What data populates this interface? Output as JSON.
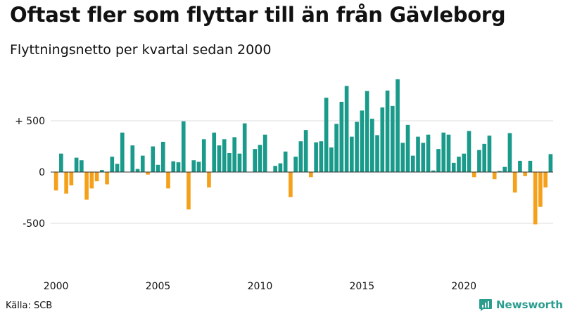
{
  "header": {
    "title": "Oftast fler som flyttar till än från Gävleborg",
    "subtitle": "Flyttningsnetto per kvartal sedan 2000"
  },
  "footer": {
    "source": "Källa: SCB",
    "brand": "Newsworthy"
  },
  "colors": {
    "positive": "#1a9a8a",
    "negative": "#f5a01a",
    "grid": "#dddddd",
    "baseline": "#333333",
    "brand": "#2a9d8f"
  },
  "chart_data": {
    "type": "bar",
    "title": "Oftast fler som flyttar till än från Gävleborg",
    "subtitle": "Flyttningsnetto per kvartal sedan 2000",
    "x_start": "2000 Q1",
    "interval": "quarter",
    "x_ticks": [
      "2000",
      "2005",
      "2010",
      "2015",
      "2020"
    ],
    "y_ticks": [
      {
        "value": 500,
        "label": "+ 500"
      },
      {
        "value": 0,
        "label": "0"
      },
      {
        "value": -500,
        "label": "-500"
      }
    ],
    "ylim": [
      -900,
      920
    ],
    "grid": true,
    "values": [
      -180,
      180,
      -210,
      -130,
      140,
      115,
      -270,
      -160,
      -90,
      20,
      -120,
      150,
      80,
      385,
      0,
      260,
      30,
      160,
      -25,
      250,
      70,
      295,
      -160,
      105,
      95,
      495,
      -365,
      115,
      100,
      320,
      -150,
      385,
      260,
      320,
      185,
      340,
      180,
      475,
      0,
      225,
      265,
      365,
      0,
      60,
      85,
      200,
      -245,
      150,
      300,
      410,
      -50,
      290,
      300,
      725,
      240,
      470,
      685,
      840,
      345,
      490,
      600,
      790,
      520,
      360,
      630,
      795,
      645,
      905,
      285,
      460,
      160,
      345,
      285,
      365,
      15,
      225,
      385,
      365,
      90,
      150,
      180,
      400,
      -50,
      215,
      275,
      355,
      -70,
      10,
      50,
      380,
      -200,
      110,
      -40,
      110,
      -510,
      -340,
      -150,
      175
    ]
  }
}
